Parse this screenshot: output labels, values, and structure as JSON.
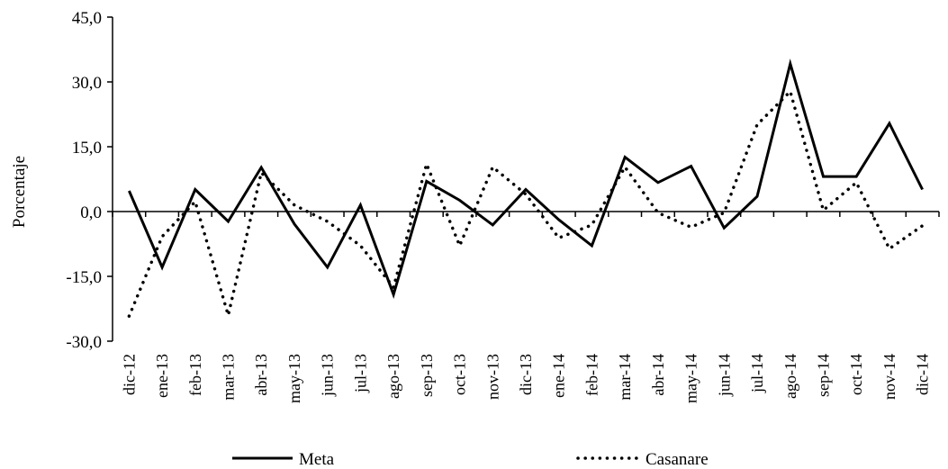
{
  "chart_data": {
    "type": "line",
    "title": "",
    "xlabel": "",
    "ylabel": "Porcentaje",
    "ylim": [
      -30,
      45
    ],
    "yticks": [
      45,
      30,
      15,
      0,
      -15,
      -30
    ],
    "ytick_labels": [
      "45,0",
      "30,0",
      "15,0",
      "0,0",
      "-15,0",
      "-30,0"
    ],
    "grid": false,
    "legend_position": "bottom",
    "categories": [
      "dic-12",
      "ene-13",
      "feb-13",
      "mar-13",
      "abr-13",
      "may-13",
      "jun-13",
      "jul-13",
      "ago-13",
      "sep-13",
      "oct-13",
      "nov-13",
      "dic-13",
      "ene-14",
      "feb-14",
      "mar-14",
      "abr-14",
      "may-14",
      "jun-14",
      "jul-14",
      "ago-14",
      "sep-14",
      "oct-14",
      "nov-14",
      "dic-14"
    ],
    "series": [
      {
        "name": "Meta",
        "color": "#000000",
        "dash": "solid",
        "values": [
          4.8,
          -12.9,
          5.1,
          -2.3,
          10.2,
          -2.9,
          -12.9,
          1.5,
          -19.2,
          7.0,
          2.6,
          -3.1,
          5.1,
          -1.9,
          -7.9,
          12.6,
          6.7,
          10.5,
          -3.8,
          3.5,
          34.2,
          8.1,
          8.1,
          20.4,
          5.1
        ]
      },
      {
        "name": "Casanare",
        "color": "#000000",
        "dash": "dotted",
        "values": [
          -24.2,
          -5.8,
          2.3,
          -24.0,
          9.0,
          1.5,
          -2.3,
          -7.9,
          -17.5,
          11.0,
          -7.9,
          10.3,
          4.0,
          -6.1,
          -3.1,
          10.3,
          -0.3,
          -3.6,
          -0.3,
          20.1,
          27.8,
          0.3,
          6.7,
          -8.6,
          -3.3
        ]
      }
    ]
  }
}
